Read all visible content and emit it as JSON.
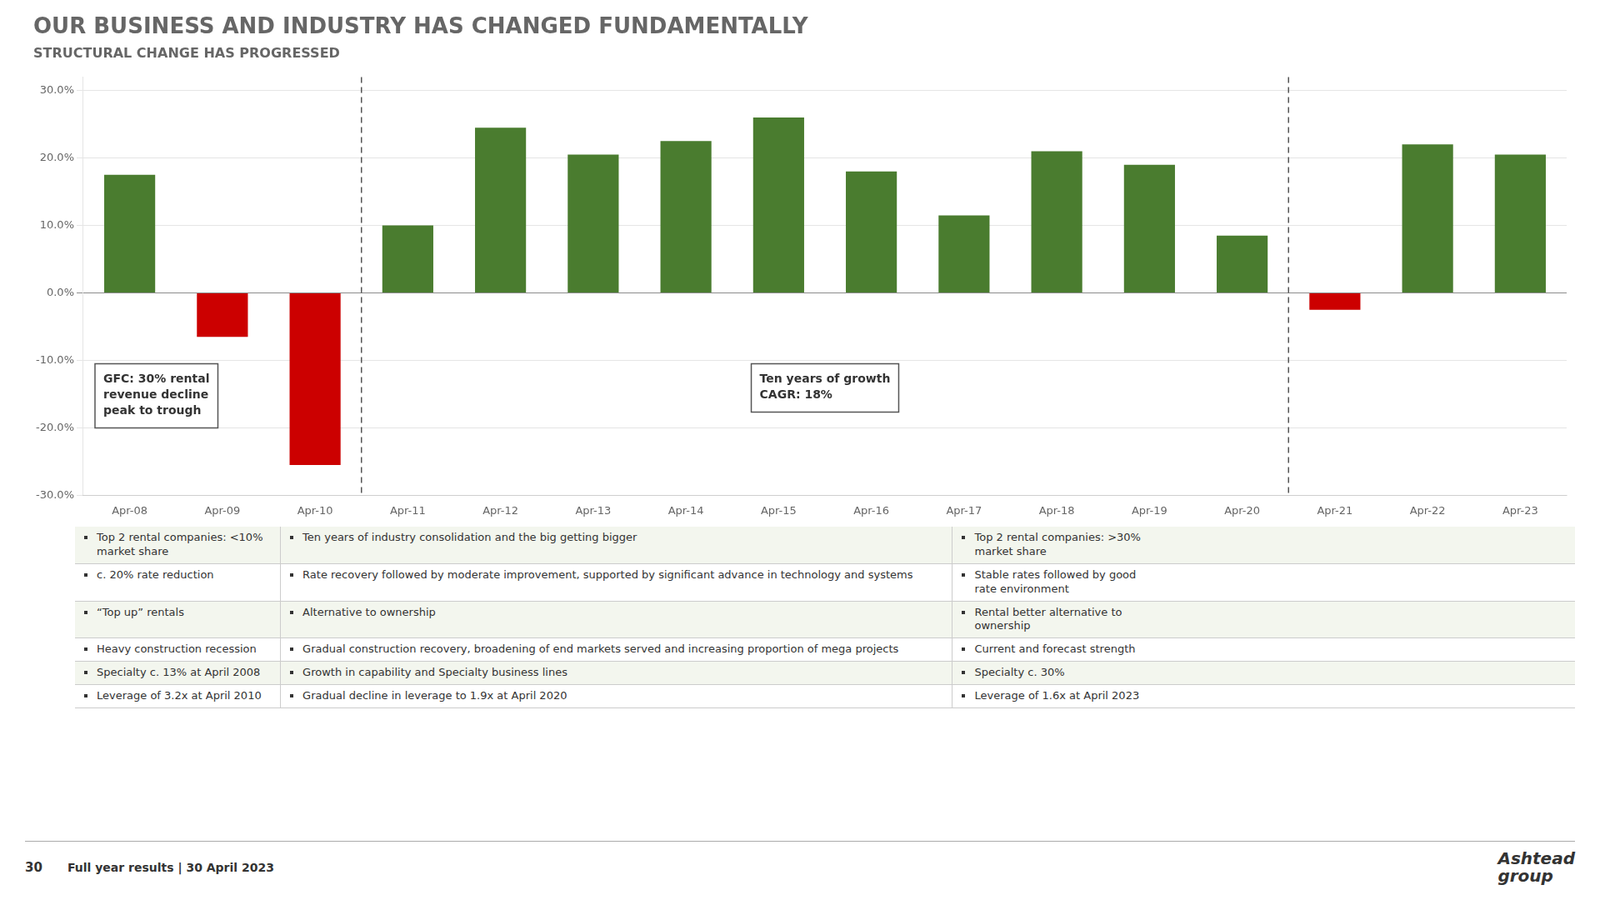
{
  "chart_data": {
    "type": "bar",
    "title": "OUR BUSINESS AND INDUSTRY HAS CHANGED FUNDAMENTALLY",
    "subtitle": "STRUCTURAL CHANGE HAS PROGRESSED",
    "categories": [
      "Apr-08",
      "Apr-09",
      "Apr-10",
      "Apr-11",
      "Apr-12",
      "Apr-13",
      "Apr-14",
      "Apr-15",
      "Apr-16",
      "Apr-17",
      "Apr-18",
      "Apr-19",
      "Apr-20",
      "Apr-21",
      "Apr-22",
      "Apr-23"
    ],
    "values": [
      17.5,
      -6.5,
      -25.5,
      10.0,
      24.5,
      20.5,
      22.5,
      26.0,
      18.0,
      11.5,
      21.0,
      19.0,
      8.5,
      -2.5,
      22.0,
      20.5
    ],
    "colors": [
      "#4a7c2f",
      "#cc0000",
      "#cc0000",
      "#4a7c2f",
      "#4a7c2f",
      "#4a7c2f",
      "#4a7c2f",
      "#4a7c2f",
      "#4a7c2f",
      "#4a7c2f",
      "#4a7c2f",
      "#4a7c2f",
      "#4a7c2f",
      "#cc0000",
      "#4a7c2f",
      "#4a7c2f"
    ],
    "ylim": [
      -30.0,
      32.0
    ],
    "yticks": [
      {
        "value": -30.0,
        "label": "-30.0%"
      },
      {
        "value": -20.0,
        "label": "-20.0%"
      },
      {
        "value": -10.0,
        "label": "-10.0%"
      },
      {
        "value": 0.0,
        "label": "0.0%"
      },
      {
        "value": 10.0,
        "label": "10.0%"
      },
      {
        "value": 20.0,
        "label": "20.0%"
      },
      {
        "value": 30.0,
        "label": "30.0%"
      }
    ],
    "grid": true,
    "dividers_between": [
      [
        "Apr-10",
        "Apr-11"
      ],
      [
        "Apr-20",
        "Apr-21"
      ]
    ],
    "annotations": [
      "GFC: 30% rental\nrevenue decline\npeak to trough",
      "Ten years of growth\nCAGR: 18%"
    ],
    "table_rows": [
      [
        "Top 2 rental companies: <10%\nmarket share",
        "Ten years of industry consolidation and the big getting bigger",
        "Top 2 rental companies: >30%\nmarket share"
      ],
      [
        "c. 20% rate reduction",
        "Rate recovery followed by moderate improvement, supported by significant advance in technology and systems",
        "Stable rates followed by good\nrate environment"
      ],
      [
        "“Top up” rentals",
        "Alternative to ownership",
        "Rental better alternative to\nownership"
      ],
      [
        "Heavy construction recession",
        "Gradual construction recovery, broadening of end markets served and increasing proportion of mega projects",
        "Current and forecast strength"
      ],
      [
        "Specialty c. 13% at April 2008",
        "Growth in capability and Specialty business lines",
        "Specialty c. 30%"
      ],
      [
        "Leverage of 3.2x at April 2010",
        "Gradual decline in leverage to 1.9x at April 2020",
        "Leverage of 1.6x at April 2023"
      ]
    ],
    "footer": {
      "page_number": "30",
      "text": "Full year results | 30 April 2023",
      "logo": "Ashtead\ngroup"
    }
  }
}
